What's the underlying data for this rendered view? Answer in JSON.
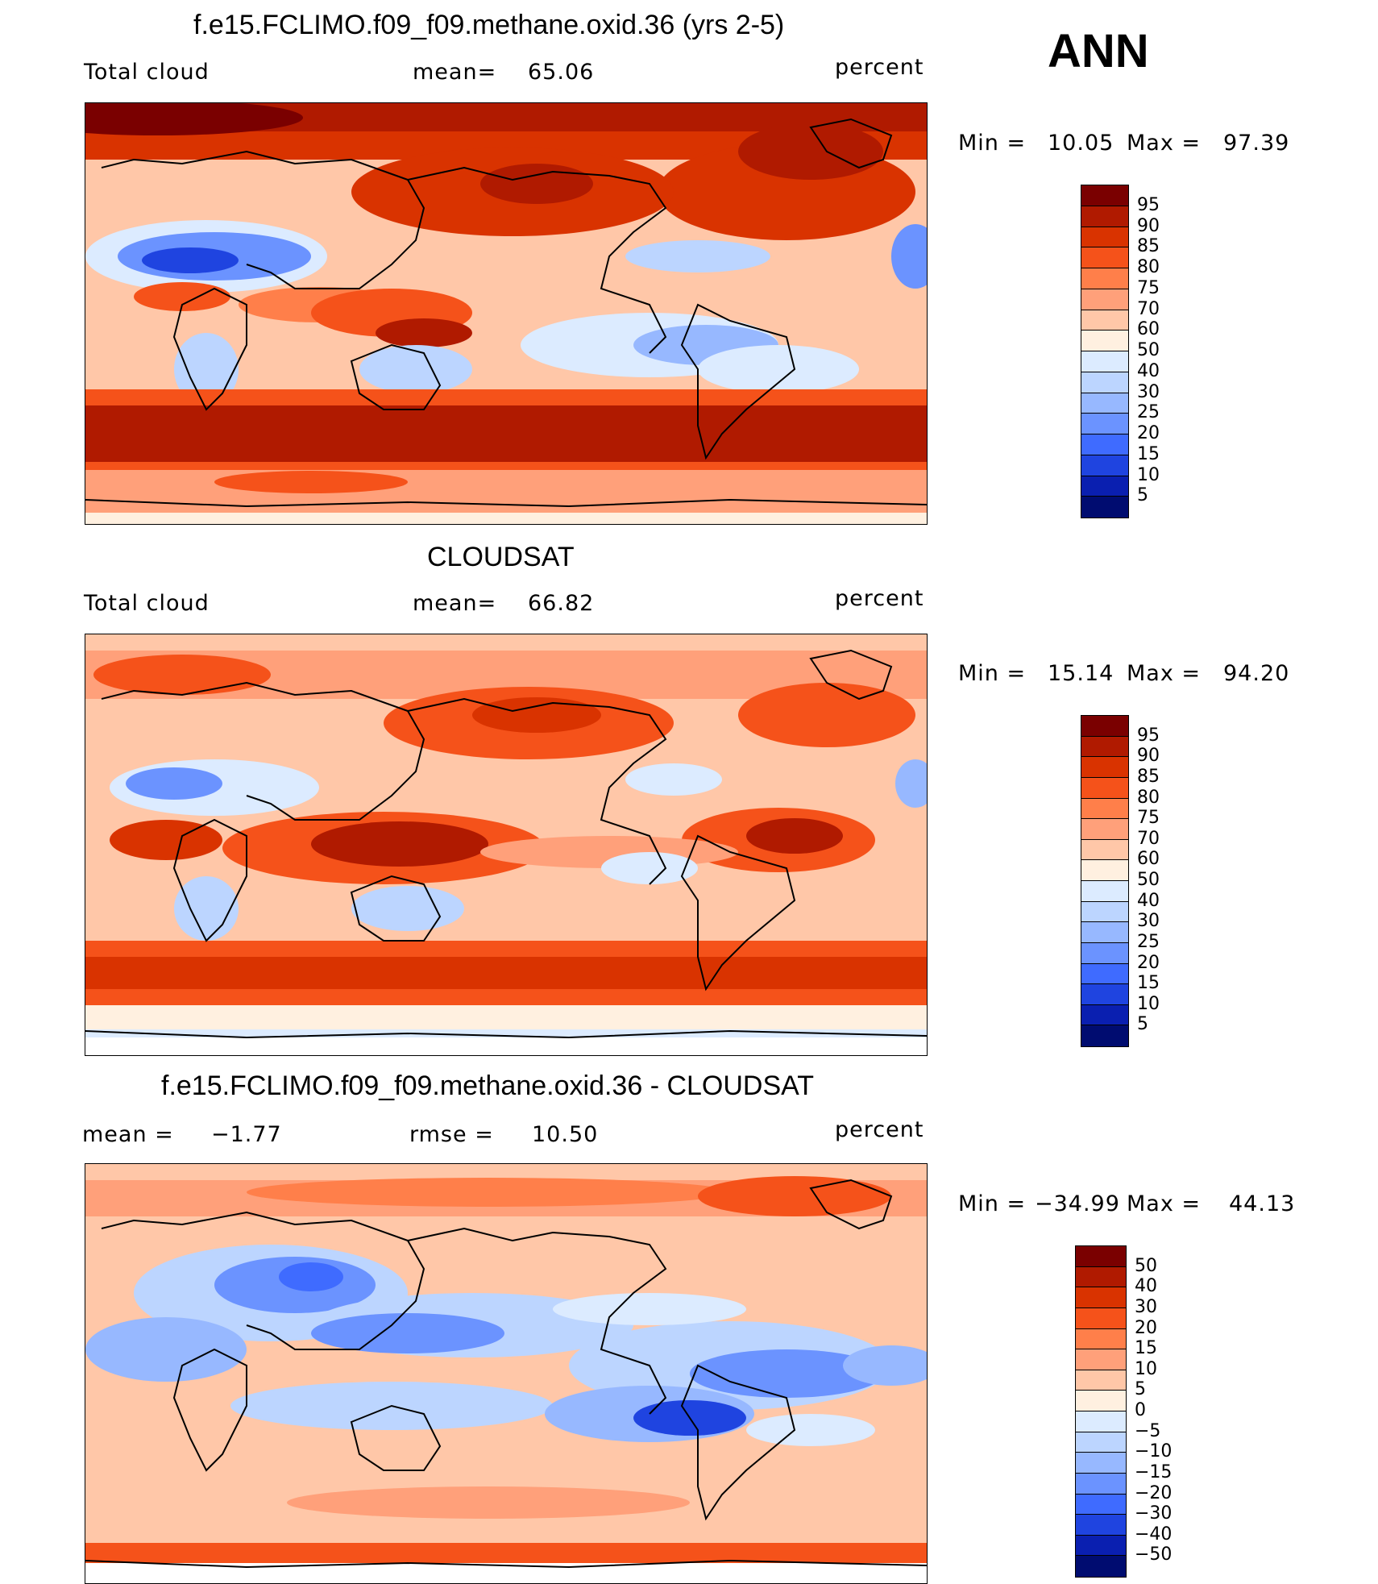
{
  "season": "ANN",
  "panels": [
    {
      "title": "f.e15.FCLIMO.f09_f09.methane.oxid.36 (yrs 2-5)",
      "left_label": "Total cloud",
      "center_label": "mean=",
      "center_value": "65.06",
      "units": "percent",
      "min_label": "Min =",
      "min_value": "10.05",
      "max_label": "Max =",
      "max_value": "97.39",
      "levels": [
        "95",
        "90",
        "85",
        "80",
        "75",
        "70",
        "60",
        "50",
        "40",
        "30",
        "25",
        "20",
        "15",
        "10",
        "5"
      ],
      "colors": [
        "#7a0000",
        "#b01a00",
        "#d93300",
        "#f5521a",
        "#ff7f4a",
        "#ffa07a",
        "#ffc7a8",
        "#fff0e0",
        "#dcebff",
        "#bcd5ff",
        "#97b8ff",
        "#6b93ff",
        "#3f6bff",
        "#1f44e0",
        "#0a1fb0",
        "#000c70"
      ],
      "chart_data": {
        "type": "heatmap",
        "field": "Total cloud",
        "units": "percent",
        "mean": 65.06,
        "min": 10.05,
        "max": 97.39,
        "contour_levels": [
          5,
          10,
          15,
          20,
          25,
          30,
          40,
          50,
          60,
          70,
          75,
          80,
          85,
          90,
          95
        ]
      }
    },
    {
      "title": "CLOUDSAT",
      "left_label": "Total cloud",
      "center_label": "mean=",
      "center_value": "66.82",
      "units": "percent",
      "min_label": "Min =",
      "min_value": "15.14",
      "max_label": "Max =",
      "max_value": "94.20",
      "levels": [
        "95",
        "90",
        "85",
        "80",
        "75",
        "70",
        "60",
        "50",
        "40",
        "30",
        "25",
        "20",
        "15",
        "10",
        "5"
      ],
      "colors": [
        "#7a0000",
        "#b01a00",
        "#d93300",
        "#f5521a",
        "#ff7f4a",
        "#ffa07a",
        "#ffc7a8",
        "#fff0e0",
        "#dcebff",
        "#bcd5ff",
        "#97b8ff",
        "#6b93ff",
        "#3f6bff",
        "#1f44e0",
        "#0a1fb0",
        "#000c70"
      ],
      "chart_data": {
        "type": "heatmap",
        "field": "Total cloud",
        "units": "percent",
        "mean": 66.82,
        "min": 15.14,
        "max": 94.2,
        "contour_levels": [
          5,
          10,
          15,
          20,
          25,
          30,
          40,
          50,
          60,
          70,
          75,
          80,
          85,
          90,
          95
        ]
      }
    },
    {
      "title": "f.e15.FCLIMO.f09_f09.methane.oxid.36 - CLOUDSAT",
      "left_label": "mean =",
      "left_value": "−1.77",
      "center_label": "rmse =",
      "center_value": "10.50",
      "units": "percent",
      "min_label": "Min =",
      "min_value": "−34.99",
      "max_label": "Max =",
      "max_value": "44.13",
      "levels": [
        "50",
        "40",
        "30",
        "20",
        "15",
        "10",
        "5",
        "0",
        "−5",
        "−10",
        "−15",
        "−20",
        "−30",
        "−40",
        "−50"
      ],
      "colors": [
        "#7a0000",
        "#b01a00",
        "#d93300",
        "#f5521a",
        "#ff7f4a",
        "#ffa07a",
        "#ffc7a8",
        "#fff0e0",
        "#dcebff",
        "#bcd5ff",
        "#97b8ff",
        "#6b93ff",
        "#3f6bff",
        "#1f44e0",
        "#0a1fb0",
        "#000c70"
      ],
      "chart_data": {
        "type": "heatmap",
        "field": "model minus observations",
        "units": "percent",
        "mean": -1.77,
        "rmse": 10.5,
        "min": -34.99,
        "max": 44.13,
        "contour_levels": [
          -50,
          -40,
          -30,
          -20,
          -15,
          -10,
          -5,
          0,
          5,
          10,
          15,
          20,
          30,
          40,
          50
        ]
      }
    }
  ]
}
